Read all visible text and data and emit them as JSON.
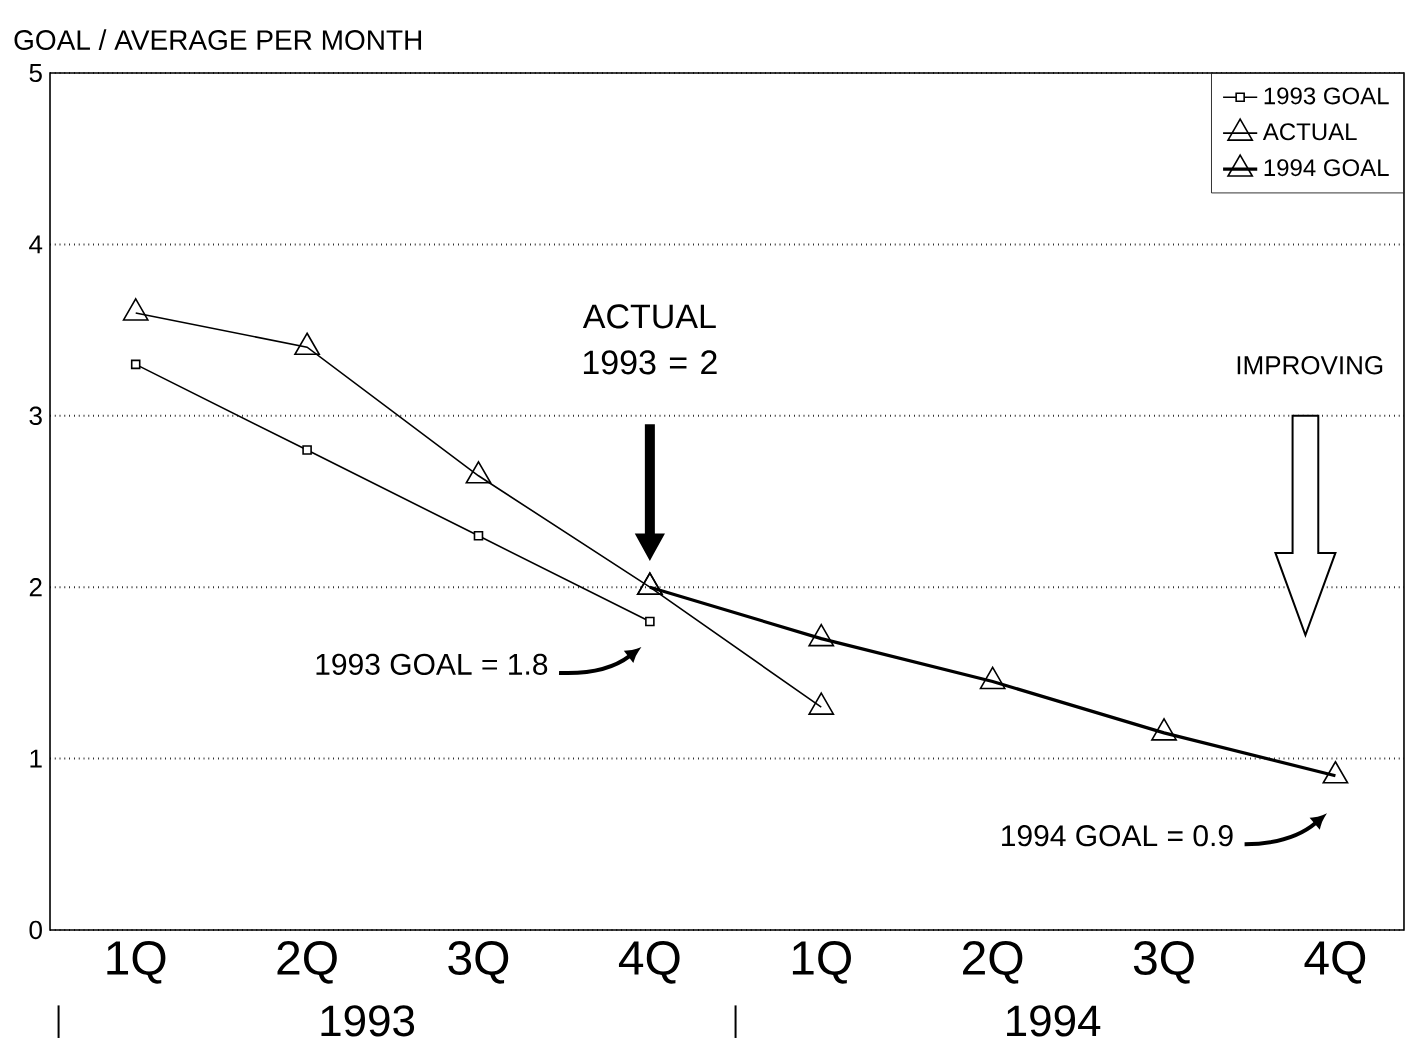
{
  "chart_data": {
    "type": "line",
    "ylabel": "GOAL / AVERAGE PER MONTH",
    "categories": [
      "1Q",
      "2Q",
      "3Q",
      "4Q",
      "1Q",
      "2Q",
      "3Q",
      "4Q"
    ],
    "series": [
      {
        "name": "1993 GOAL",
        "color": "#000000",
        "marker": "square",
        "values": [
          3.3,
          2.8,
          2.3,
          1.8,
          null,
          null,
          null,
          null
        ]
      },
      {
        "name": "ACTUAL",
        "color": "#000000",
        "marker": "triangle",
        "values": [
          3.6,
          3.4,
          2.65,
          2.0,
          1.3,
          null,
          null,
          null
        ]
      },
      {
        "name": "1994 GOAL",
        "color": "#000000",
        "marker": "triangle",
        "values": [
          null,
          null,
          null,
          2.0,
          1.7,
          1.45,
          1.15,
          0.9
        ]
      }
    ],
    "ylim": [
      0,
      5
    ],
    "yticks": [
      0,
      1,
      2,
      3,
      4,
      5
    ],
    "grid": "y",
    "legend": "top right",
    "annotations": [
      "1993",
      "1994",
      "ACTUAL 1993 = 2",
      "1993 GOAL = 1.8",
      "IMPROVING",
      "1994 GOAL = 0.9"
    ]
  }
}
